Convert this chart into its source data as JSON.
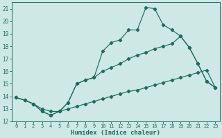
{
  "xlabel": "Humidex (Indice chaleur)",
  "xlim": [
    -0.5,
    23.5
  ],
  "ylim": [
    12,
    21.5
  ],
  "yticks": [
    12,
    13,
    14,
    15,
    16,
    17,
    18,
    19,
    20,
    21
  ],
  "xticks": [
    0,
    1,
    2,
    3,
    4,
    5,
    6,
    7,
    8,
    9,
    10,
    11,
    12,
    13,
    14,
    15,
    16,
    17,
    18,
    19,
    20,
    21,
    22,
    23
  ],
  "bg_color": "#cde8e5",
  "grid_color": "#b5d8d5",
  "line_color": "#1e6b5e",
  "line1_x": [
    0,
    1,
    2,
    3,
    4,
    5,
    6,
    7,
    8,
    9,
    10,
    11,
    12,
    13,
    14,
    15,
    16,
    17,
    18,
    19,
    20,
    21,
    22,
    23
  ],
  "line1_y": [
    13.9,
    13.7,
    13.4,
    13.0,
    12.8,
    12.8,
    13.0,
    13.2,
    13.4,
    13.6,
    13.8,
    14.0,
    14.2,
    14.4,
    14.5,
    14.7,
    14.9,
    15.1,
    15.3,
    15.5,
    15.7,
    15.9,
    16.1,
    14.7
  ],
  "line2_x": [
    0,
    1,
    2,
    3,
    4,
    5,
    6,
    7,
    8,
    9,
    10,
    11,
    12,
    13,
    14,
    15,
    16,
    17,
    18,
    19,
    20,
    21,
    22,
    23
  ],
  "line2_y": [
    13.9,
    13.7,
    13.4,
    12.8,
    12.5,
    12.8,
    13.5,
    15.0,
    15.3,
    15.5,
    16.0,
    16.3,
    16.6,
    17.0,
    17.3,
    17.5,
    17.8,
    18.0,
    18.2,
    18.8,
    17.9,
    16.6,
    15.2,
    14.7
  ],
  "line3_x": [
    0,
    1,
    2,
    3,
    4,
    5,
    6,
    7,
    8,
    9,
    10,
    11,
    12,
    13,
    14,
    15,
    16,
    17,
    18,
    19,
    20,
    21,
    22,
    23
  ],
  "line3_y": [
    13.9,
    13.7,
    13.4,
    12.8,
    12.5,
    12.8,
    13.5,
    15.0,
    15.3,
    15.5,
    17.6,
    18.3,
    18.5,
    19.3,
    19.3,
    21.1,
    21.0,
    19.7,
    19.3,
    18.8,
    17.9,
    16.6,
    15.2,
    14.7
  ]
}
